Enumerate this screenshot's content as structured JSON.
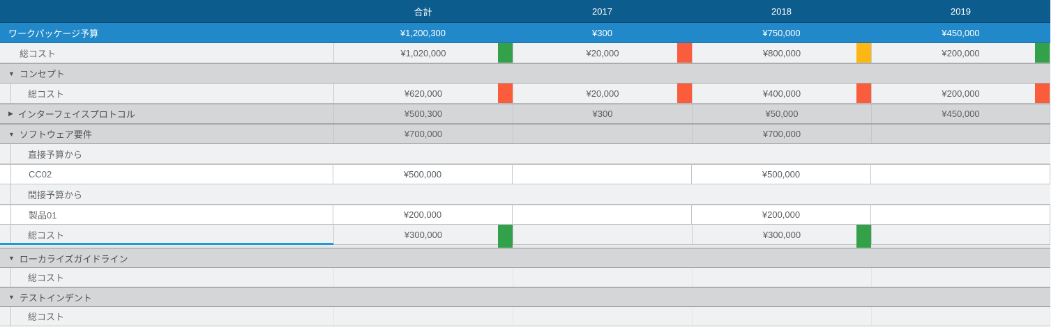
{
  "table": {
    "colors": {
      "header_bg": "#0d5c8e",
      "header_border": "#09466e",
      "budget_bg": "#2189ca",
      "budget_border": "#1a72a8",
      "light_row_bg": "#eff1f2",
      "section_bg": "#d4d6d7",
      "row_border": "#bcbec0",
      "section_border": "#a4a6a8",
      "cell_border": "#c2c4c6",
      "cell_sep_strong": "#c8cacc",
      "cell_sep_faint": "#e3e5e7",
      "label_text": "#66696c",
      "value_text": "#595c5f",
      "section_text": "#4e5153",
      "selection_blue": "#1f9ad6",
      "green": "#33a04a",
      "red": "#fb5c3b",
      "yellow": "#fcb714"
    },
    "columns": [
      {
        "label": "合計"
      },
      {
        "label": "2017"
      },
      {
        "label": "2018"
      },
      {
        "label": "2019"
      }
    ],
    "rows": [
      {
        "name": "row-workpackage-budget",
        "kind": "budget",
        "label": "ワークパッケージ予算",
        "values": [
          "¥1,200,300",
          "¥300",
          "¥750,000",
          "¥450,000"
        ]
      },
      {
        "name": "row-total-cost",
        "kind": "cost",
        "label": "総コスト",
        "values": [
          "¥1,020,000",
          "¥20,000",
          "¥800,000",
          "¥200,000"
        ],
        "indicators": [
          "green",
          "red",
          "yellow",
          "green"
        ]
      },
      {
        "name": "section-concept",
        "kind": "section",
        "arrow": "down",
        "label": "コンセプト",
        "values": [
          "",
          "",
          "",
          ""
        ]
      },
      {
        "name": "row-concept-total-cost",
        "kind": "cost",
        "child": true,
        "inset": true,
        "label": "総コスト",
        "values": [
          "¥620,000",
          "¥20,000",
          "¥400,000",
          "¥200,000"
        ],
        "indicators": [
          "red",
          "red",
          "red",
          "red"
        ]
      },
      {
        "name": "section-interface-protocol",
        "kind": "section",
        "arrow": "right",
        "label": "インターフェイスプロトコル",
        "values": [
          "¥500,300",
          "¥300",
          "¥50,000",
          "¥450,000"
        ]
      },
      {
        "name": "section-software-requirements",
        "kind": "section",
        "arrow": "down",
        "label": "ソフトウェア要件",
        "values": [
          "¥700,000",
          "",
          "¥700,000",
          ""
        ]
      },
      {
        "name": "row-from-direct-budget",
        "kind": "sublabel",
        "inset": true,
        "label": "直接予算から",
        "values": [
          "",
          "",
          "",
          ""
        ]
      },
      {
        "name": "row-cc02",
        "kind": "entry",
        "label": "CC02",
        "values": [
          "¥500,000",
          "",
          "¥500,000",
          ""
        ]
      },
      {
        "name": "row-from-indirect-budget",
        "kind": "sublabel",
        "inset": true,
        "label": "間接予算から",
        "values": [
          "",
          "",
          "",
          ""
        ]
      },
      {
        "name": "row-product01",
        "kind": "entry",
        "label": "製品01",
        "values": [
          "¥200,000",
          "",
          "¥200,000",
          ""
        ]
      },
      {
        "name": "row-software-total-cost",
        "kind": "cost",
        "child": true,
        "inset": true,
        "selected": true,
        "label": "総コスト",
        "values": [
          "¥300,000",
          "",
          "¥300,000",
          ""
        ],
        "indicators": [
          "green",
          "",
          "green",
          ""
        ]
      },
      {
        "name": "separator",
        "kind": "gap"
      },
      {
        "name": "section-localization-guideline",
        "kind": "section",
        "arrow": "down",
        "label": "ローカライズガイドライン",
        "values": [
          "",
          "",
          "",
          ""
        ],
        "afterGap": true
      },
      {
        "name": "row-localization-total-cost",
        "kind": "cost",
        "child": true,
        "inset": true,
        "empty": true,
        "label": "総コスト",
        "values": [
          "",
          "",
          "",
          ""
        ],
        "afterGap": true
      },
      {
        "name": "section-test-indent",
        "kind": "section",
        "arrow": "down",
        "label": "テストインデント",
        "values": [
          "",
          "",
          "",
          ""
        ],
        "afterGap": true
      },
      {
        "name": "row-test-total-cost",
        "kind": "cost",
        "child": true,
        "inset": true,
        "empty": true,
        "label": "総コスト",
        "values": [
          "",
          "",
          "",
          ""
        ],
        "afterGap": true
      }
    ]
  }
}
